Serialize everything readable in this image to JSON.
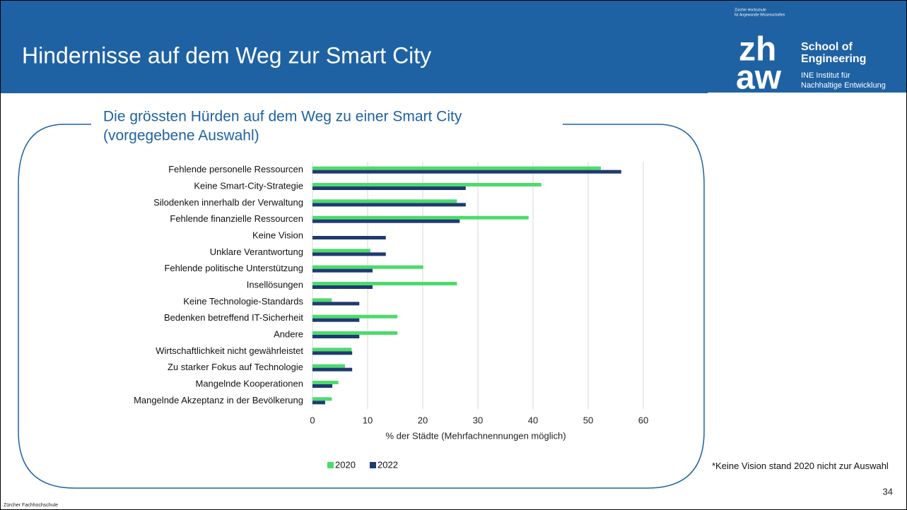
{
  "header": {
    "title": "Hindernisse auf dem Weg zur Smart City",
    "org_small": [
      "Zürcher Hochschule",
      "für Angewandte Wissenschaften"
    ],
    "logo": [
      "zh",
      "aw"
    ],
    "school": [
      "School of",
      "Engineering"
    ],
    "institute": [
      "INE Institut für",
      "Nachhaltige Entwicklung"
    ]
  },
  "chart_data": {
    "type": "bar",
    "title": [
      "Die grössten Hürden auf dem Weg zu einer Smart City",
      "(vorgegebene Auswahl)"
    ],
    "orientation": "horizontal",
    "categories": [
      "Fehlende personelle Ressourcen",
      "Keine Smart-City-Strategie",
      "Silodenken innerhalb der Verwaltung",
      "Fehlende finanzielle Ressourcen",
      "Keine Vision",
      "Unklare Verantwortung",
      "Fehlende politische Unterstützung",
      "Insellösungen",
      "Keine Technologie-Standards",
      "Bedenken betreffend IT-Sicherheit",
      "Andere",
      "Wirtschaftlichkeit nicht gewährleistet",
      "Zu starker Fokus auf Technologie",
      "Mangelnde Kooperationen",
      "Mangelnde Akzeptanz in der Bevölkerung"
    ],
    "series": [
      {
        "name": "2020",
        "color": "#4cdb6c",
        "values": [
          52.3,
          41.5,
          26.2,
          39.2,
          null,
          10.5,
          20.1,
          26.2,
          3.5,
          15.4,
          15.4,
          7.1,
          5.9,
          4.7,
          3.5
        ]
      },
      {
        "name": "2022",
        "color": "#1f3a70",
        "values": [
          56.0,
          27.8,
          27.8,
          26.7,
          13.3,
          13.3,
          10.9,
          10.9,
          8.5,
          8.5,
          8.5,
          7.2,
          7.2,
          3.6,
          2.3
        ]
      }
    ],
    "xlim": [
      0,
      60
    ],
    "xticks": [
      0,
      10,
      20,
      30,
      40,
      50,
      60
    ],
    "xlabel": "% der Städte (Mehrfachnennungen möglich)",
    "grid": true,
    "legend": "bottom"
  },
  "note": "*Keine Vision stand 2020 nicht zur Auswahl",
  "page_number": "34",
  "footer": "Zürcher Fachhochschule"
}
